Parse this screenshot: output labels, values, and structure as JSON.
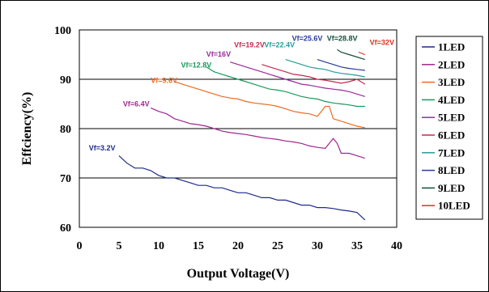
{
  "chart_data": {
    "type": "line",
    "title": "",
    "xlabel": "Output Voltage(V)",
    "ylabel": "Effciency(%)",
    "xlim": [
      0,
      40
    ],
    "ylim": [
      60,
      100
    ],
    "xticks": [
      0,
      5,
      10,
      15,
      20,
      25,
      30,
      35,
      40
    ],
    "yticks": [
      60,
      70,
      80,
      90,
      100
    ],
    "grid": "horizontal",
    "legend": "right",
    "series": [
      {
        "name": "1LED",
        "color": "#1f2a8a",
        "label": "Vf=3.2V",
        "label_at": [
          1.2,
          75.6
        ],
        "points": [
          [
            5,
            74.5
          ],
          [
            6,
            73
          ],
          [
            7,
            72
          ],
          [
            8,
            72
          ],
          [
            9,
            71.5
          ],
          [
            10,
            70.5
          ],
          [
            11,
            70
          ],
          [
            12,
            70
          ],
          [
            13,
            69.5
          ],
          [
            14,
            69
          ],
          [
            15,
            68.5
          ],
          [
            16,
            68.5
          ],
          [
            17,
            68
          ],
          [
            18,
            68
          ],
          [
            19,
            67.5
          ],
          [
            20,
            67
          ],
          [
            21,
            67
          ],
          [
            22,
            66.5
          ],
          [
            23,
            66
          ],
          [
            24,
            66
          ],
          [
            25,
            65.5
          ],
          [
            26,
            65.5
          ],
          [
            27,
            65
          ],
          [
            28,
            64.5
          ],
          [
            29,
            64.5
          ],
          [
            30,
            64
          ],
          [
            31,
            64
          ],
          [
            32,
            63.8
          ],
          [
            33,
            63.5
          ],
          [
            34,
            63.3
          ],
          [
            35,
            63
          ],
          [
            36,
            61.5
          ]
        ]
      },
      {
        "name": "2LED",
        "color": "#a02690",
        "label": "Vf=6.4V",
        "label_at": [
          5.5,
          84.5
        ],
        "points": [
          [
            9,
            84.2
          ],
          [
            10,
            83.5
          ],
          [
            11,
            83
          ],
          [
            12,
            82
          ],
          [
            13,
            81.5
          ],
          [
            14,
            81
          ],
          [
            15,
            80.8
          ],
          [
            16,
            80.5
          ],
          [
            17,
            80
          ],
          [
            18,
            79.5
          ],
          [
            19,
            79.2
          ],
          [
            20,
            79
          ],
          [
            21,
            78.8
          ],
          [
            22,
            78.5
          ],
          [
            23,
            78.2
          ],
          [
            24,
            78
          ],
          [
            25,
            77.8
          ],
          [
            26,
            77.5
          ],
          [
            27,
            77.3
          ],
          [
            28,
            77
          ],
          [
            29,
            76.5
          ],
          [
            30,
            76.2
          ],
          [
            31,
            76
          ],
          [
            31.5,
            77
          ],
          [
            32,
            78
          ],
          [
            32.5,
            77
          ],
          [
            33,
            75
          ],
          [
            34,
            75
          ],
          [
            35,
            74.5
          ],
          [
            36,
            74
          ]
        ]
      },
      {
        "name": "3LED",
        "color": "#f06a20",
        "label": "Vf=9.6V",
        "label_at": [
          9,
          89.3
        ],
        "points": [
          [
            12,
            89.5
          ],
          [
            13,
            89
          ],
          [
            14,
            88.5
          ],
          [
            15,
            88
          ],
          [
            16,
            87.5
          ],
          [
            17,
            87
          ],
          [
            18,
            86.5
          ],
          [
            19,
            86.2
          ],
          [
            20,
            86
          ],
          [
            21,
            85.5
          ],
          [
            22,
            85.2
          ],
          [
            23,
            85
          ],
          [
            24,
            84.8
          ],
          [
            25,
            84.5
          ],
          [
            26,
            84
          ],
          [
            27,
            83.5
          ],
          [
            28,
            83.2
          ],
          [
            29,
            83
          ],
          [
            30,
            82.5
          ],
          [
            30.5,
            83.5
          ],
          [
            31,
            84.5
          ],
          [
            31.5,
            84.5
          ],
          [
            32,
            82
          ],
          [
            33,
            81.5
          ],
          [
            34,
            81
          ],
          [
            35,
            80.5
          ],
          [
            36,
            80.2
          ]
        ]
      },
      {
        "name": "4LED",
        "color": "#1a9a5c",
        "label": "Vf=12.8V",
        "label_at": [
          12.8,
          92.4
        ],
        "points": [
          [
            16,
            92.5
          ],
          [
            17,
            91.5
          ],
          [
            18,
            91
          ],
          [
            19,
            90.5
          ],
          [
            20,
            90
          ],
          [
            21,
            89.5
          ],
          [
            22,
            89
          ],
          [
            23,
            88.5
          ],
          [
            24,
            88
          ],
          [
            25,
            87.8
          ],
          [
            26,
            87.5
          ],
          [
            27,
            87
          ],
          [
            28,
            86.5
          ],
          [
            29,
            86.2
          ],
          [
            30,
            86
          ],
          [
            31,
            85.5
          ],
          [
            32,
            85.2
          ],
          [
            33,
            85
          ],
          [
            34,
            84.8
          ],
          [
            35,
            84.5
          ],
          [
            36,
            84.5
          ]
        ]
      },
      {
        "name": "5LED",
        "color": "#9a2a9a",
        "label": "Vf=16V",
        "label_at": [
          16,
          94.6
        ],
        "points": [
          [
            19,
            93.5
          ],
          [
            20,
            93
          ],
          [
            21,
            92.5
          ],
          [
            22,
            92
          ],
          [
            23,
            91.5
          ],
          [
            24,
            91
          ],
          [
            25,
            90.5
          ],
          [
            26,
            90
          ],
          [
            27,
            89.5
          ],
          [
            28,
            89
          ],
          [
            29,
            88.8
          ],
          [
            30,
            88.5
          ],
          [
            31,
            88.2
          ],
          [
            32,
            88
          ],
          [
            33,
            87.8
          ],
          [
            34,
            87.5
          ],
          [
            35,
            87
          ],
          [
            36,
            86.5
          ]
        ]
      },
      {
        "name": "6LED",
        "color": "#c42a50",
        "label": "Vf=19.2V",
        "label_at": [
          19.5,
          96.5
        ],
        "points": [
          [
            23,
            93
          ],
          [
            24,
            92.5
          ],
          [
            25,
            92
          ],
          [
            26,
            91.5
          ],
          [
            27,
            91
          ],
          [
            28,
            90.8
          ],
          [
            29,
            90.5
          ],
          [
            30,
            90
          ],
          [
            31,
            89.8
          ],
          [
            32,
            89.5
          ],
          [
            33,
            89.2
          ],
          [
            34,
            89.5
          ],
          [
            35,
            90
          ],
          [
            36,
            89
          ]
        ]
      },
      {
        "name": "7LED",
        "color": "#2a9a9a",
        "label": "Vf=22.4V",
        "label_at": [
          23.3,
          96.5
        ],
        "points": [
          [
            26,
            94
          ],
          [
            27,
            93.5
          ],
          [
            28,
            93
          ],
          [
            29,
            92.5
          ],
          [
            30,
            92.2
          ],
          [
            31,
            92
          ],
          [
            32,
            91.5
          ],
          [
            33,
            91.2
          ],
          [
            34,
            91
          ],
          [
            35,
            90.8
          ],
          [
            36,
            90.5
          ]
        ]
      },
      {
        "name": "8LED",
        "color": "#2a3a9a",
        "label": "Vf=25.6V",
        "label_at": [
          26.8,
          97.8
        ],
        "points": [
          [
            30,
            94
          ],
          [
            31,
            93.5
          ],
          [
            32,
            93
          ],
          [
            33,
            92.5
          ],
          [
            34,
            92.2
          ],
          [
            35,
            92
          ],
          [
            36,
            91.8
          ]
        ]
      },
      {
        "name": "9LED",
        "color": "#10503a",
        "label": "Vf=28.8V",
        "label_at": [
          31.2,
          97.8
        ],
        "points": [
          [
            32.5,
            96
          ],
          [
            33,
            95.5
          ],
          [
            34,
            95
          ],
          [
            35,
            94.5
          ],
          [
            36,
            94
          ]
        ]
      },
      {
        "name": "10LED",
        "color": "#e03020",
        "label": "Vf=32V",
        "label_at": [
          36.6,
          97
        ],
        "points": [
          [
            35.2,
            95.5
          ],
          [
            36,
            95
          ]
        ]
      }
    ]
  }
}
